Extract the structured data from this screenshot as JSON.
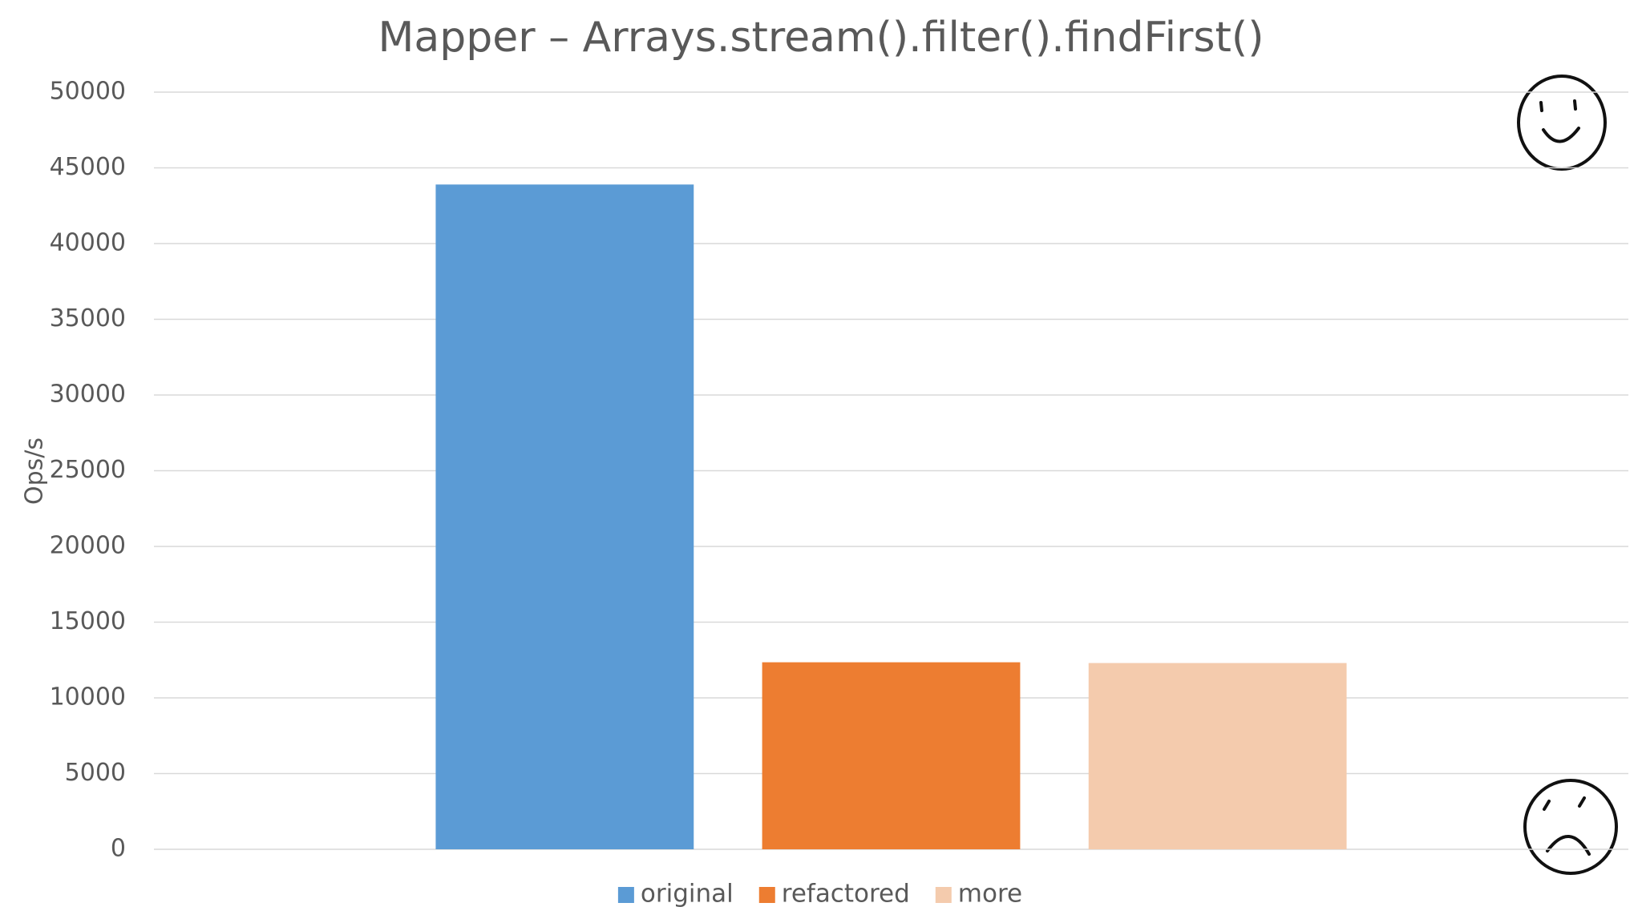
{
  "chart_data": {
    "type": "bar",
    "title": "Mapper – Arrays.stream().filter().findFirst()",
    "y_label": "Ops/s",
    "categories": [
      null
    ],
    "series": [
      {
        "name": "original",
        "color": "#5b9bd5",
        "values": [
          43900
        ]
      },
      {
        "name": "refactored",
        "color": "#ed7d31",
        "values": [
          12350
        ]
      },
      {
        "name": "more",
        "color": "#f4cbad",
        "values": [
          12300
        ]
      }
    ],
    "ylim": [
      0,
      50000
    ],
    "yticks": [
      0,
      5000,
      10000,
      15000,
      20000,
      25000,
      30000,
      35000,
      40000,
      45000,
      50000
    ],
    "grid": true,
    "legend": "bottom"
  }
}
